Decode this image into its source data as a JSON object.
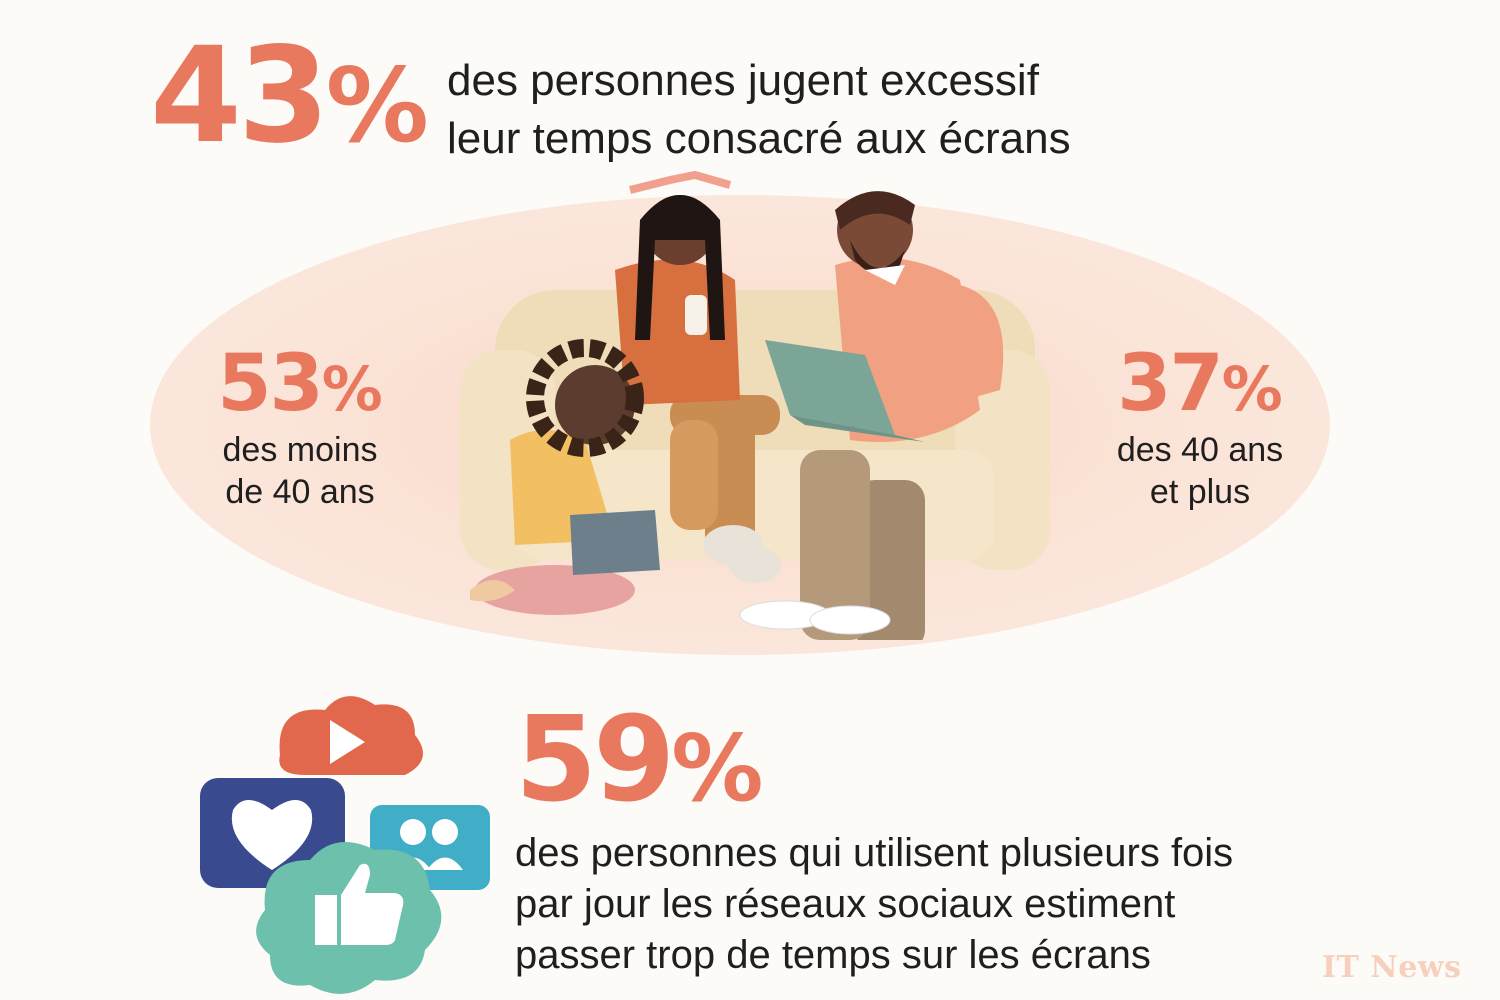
{
  "top": {
    "value": "43",
    "unit": "%",
    "caption_line1": "des personnes jugent excessif",
    "caption_line2": "leur temps consacré aux écrans"
  },
  "left": {
    "value": "53",
    "unit": "%",
    "caption_line1": "des moins",
    "caption_line2": "de 40 ans"
  },
  "right": {
    "value": "37",
    "unit": "%",
    "caption_line1": "des 40 ans",
    "caption_line2": "et plus"
  },
  "bottom": {
    "value": "59",
    "unit": "%",
    "caption_line1": "des personnes qui utilisent plusieurs fois",
    "caption_line2": "par jour les réseaux sociaux estiment",
    "caption_line3": "passer trop de temps sur les écrans"
  },
  "watermark": "IT News",
  "colors": {
    "accent": "#e8795e",
    "ellipse": "#fbe2d5",
    "couch": "#efdcb8",
    "social_red": "#e2684d",
    "social_blue": "#3a4a8f",
    "social_teal": "#3faec6",
    "social_green": "#6cc0ac"
  },
  "icons": [
    "video-play-icon",
    "heart-icon",
    "users-icon",
    "thumbs-up-icon"
  ]
}
